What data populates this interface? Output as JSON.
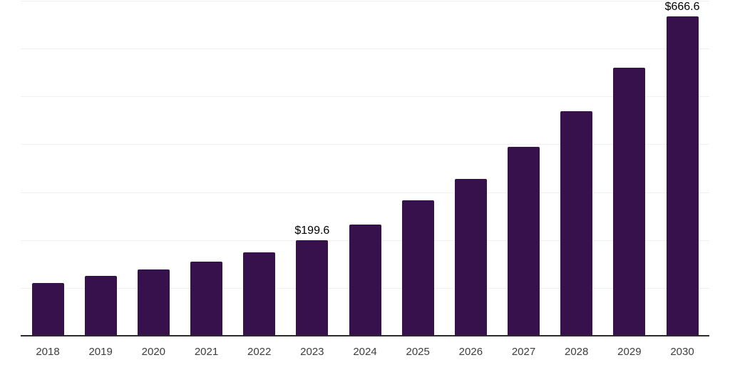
{
  "chart_data": {
    "type": "bar",
    "title": "",
    "xlabel": "",
    "ylabel": "",
    "categories": [
      "2018",
      "2019",
      "2020",
      "2021",
      "2022",
      "2023",
      "2024",
      "2025",
      "2026",
      "2027",
      "2028",
      "2029",
      "2030"
    ],
    "values": [
      110.0,
      125.5,
      138.9,
      154.5,
      174.9,
      199.6,
      232.9,
      282.8,
      328.4,
      394.8,
      469.4,
      559.5,
      666.6
    ],
    "data_labels": [
      {
        "category": "2023",
        "text": "$199.6"
      },
      {
        "category": "2030",
        "text": "$666.6"
      }
    ],
    "ylim": [
      0,
      700
    ],
    "gridline_step": 100,
    "grid": "horizontal",
    "legend": "none",
    "y_axis_labels": "none",
    "colors": {
      "bar": "#36114c",
      "axis_line": "#2b2b2b",
      "gridline": "#f1f1f4",
      "data_label_text": "#000000",
      "tick_label_text": "#3d3d3d",
      "background": "#ffffff"
    }
  }
}
